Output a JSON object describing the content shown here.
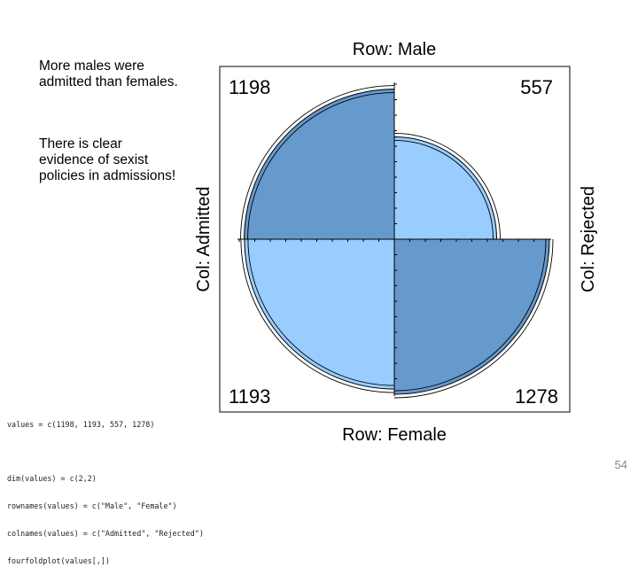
{
  "notes": [
    "More males were admitted than females.",
    "There is clear evidence of sexist policies in admissions!"
  ],
  "code_lines": [
    "values = c(1198, 1193, 557, 1278)",
    "",
    "dim(values) = c(2,2)",
    "rownames(values) = c(\"Male\", \"Female\")",
    "colnames(values) = c(\"Admitted\", \"Rejected\")",
    "fourfoldplot(values[,])"
  ],
  "page_number": "54",
  "colors": {
    "dark_quadrant": "#6699cc",
    "light_quadrant": "#99ccff",
    "outline": "#000000"
  },
  "chart_data": {
    "type": "fourfold",
    "rows": [
      "Male",
      "Female"
    ],
    "columns": [
      "Admitted",
      "Rejected"
    ],
    "values": [
      [
        1198,
        557
      ],
      [
        1193,
        1278
      ]
    ],
    "labels": {
      "top": "Row: Male",
      "bottom": "Row: Female",
      "left": "Col: Admitted",
      "right": "Col: Rejected"
    },
    "cell_labels": {
      "top_left": "1198",
      "top_right": "557",
      "bottom_left": "1193",
      "bottom_right": "1278"
    }
  }
}
